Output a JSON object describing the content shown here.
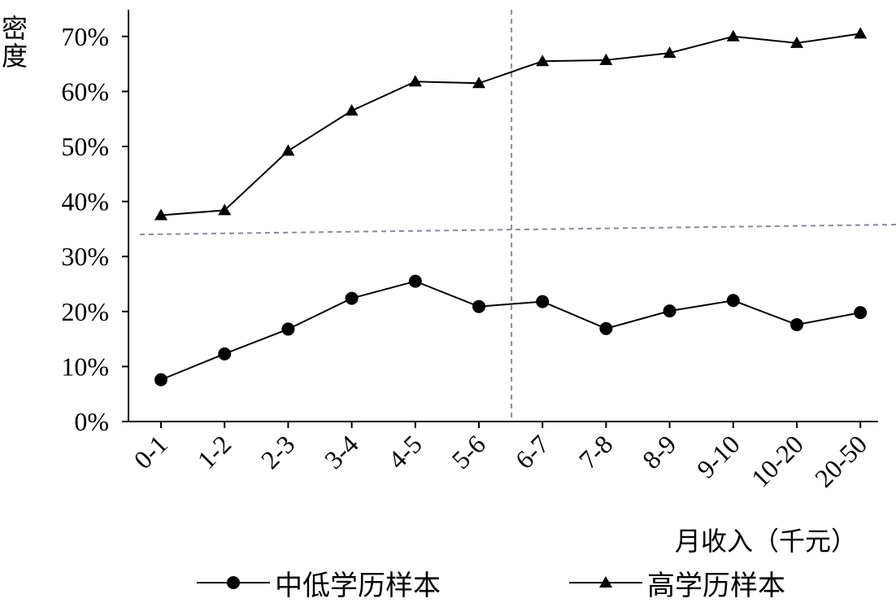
{
  "chart_data": {
    "type": "line",
    "ylabel": "密度",
    "xlabel": "月收入（千元）",
    "categories": [
      "0-1",
      "1-2",
      "2-3",
      "3-4",
      "4-5",
      "5-6",
      "6-7",
      "7-8",
      "8-9",
      "9-10",
      "10-20",
      "20-50"
    ],
    "yticks": [
      "0%",
      "10%",
      "20%",
      "30%",
      "40%",
      "50%",
      "60%",
      "70%"
    ],
    "ylim": [
      0,
      0.75
    ],
    "series": [
      {
        "name": "中低学历样本",
        "marker": "circle",
        "color": "#000000",
        "values": [
          0.076,
          0.123,
          0.168,
          0.224,
          0.255,
          0.209,
          0.218,
          0.169,
          0.201,
          0.22,
          0.176,
          0.198
        ]
      },
      {
        "name": "高学历样本",
        "marker": "triangle",
        "color": "#000000",
        "values": [
          0.375,
          0.384,
          0.492,
          0.565,
          0.618,
          0.615,
          0.655,
          0.657,
          0.67,
          0.7,
          0.688,
          0.705
        ]
      }
    ],
    "reference_lines": {
      "color": "#8a8a9a",
      "style": "dashed",
      "vertical_between": [
        "5-6",
        "6-7"
      ],
      "sloped_y_start": 0.34,
      "sloped_y_end": 0.358
    },
    "legend_position": "bottom",
    "grid": false
  }
}
